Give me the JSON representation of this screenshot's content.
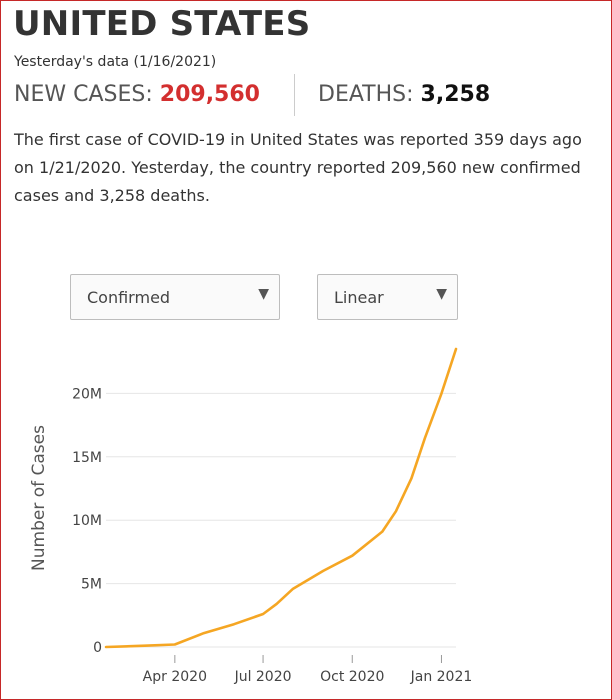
{
  "header": {
    "title": "UNITED STATES",
    "date_label": "Yesterday's data (1/16/2021)"
  },
  "stats": {
    "cases_label": "NEW CASES:",
    "cases_value": "209,560",
    "deaths_label": "DEATHS:",
    "deaths_value": "3,258"
  },
  "summary": {
    "line1_a": "The first case of ",
    "line1_b": "COVID-19",
    "line1_c": " in United States was reported 359 days ago",
    "line2": "on 1/21/2020. Yesterday, the country reported 209,560 new confirmed",
    "line3": "cases and 3,258 deaths."
  },
  "controls": {
    "metric_select": "Confirmed",
    "scale_select": "Linear"
  },
  "colors": {
    "line": "#f5a623",
    "title": "#333333",
    "cases_value": "#d32f2f",
    "frame": "#c62828",
    "grid": "#e6e6e6"
  },
  "chart_data": {
    "type": "line",
    "title": "",
    "xlabel": "",
    "ylabel": "Number of Cases",
    "x_ticks": [
      "Apr 2020",
      "Jul 2020",
      "Oct 2020",
      "Jan 2021"
    ],
    "y_ticks": [
      "0",
      "5M",
      "10M",
      "15M",
      "20M"
    ],
    "ylim": [
      0,
      23500000
    ],
    "grid": true,
    "series": [
      {
        "dates": [
          "2020-01-21",
          "2020-03-01",
          "2020-04-01",
          "2020-05-01",
          "2020-06-01",
          "2020-07-01",
          "2020-07-15",
          "2020-08-01",
          "2020-09-01",
          "2020-10-01",
          "2020-11-01",
          "2020-11-15",
          "2020-12-01",
          "2020-12-15",
          "2021-01-01",
          "2021-01-16"
        ],
        "values": [
          0,
          100000,
          200000,
          1100000,
          1800000,
          2600000,
          3400000,
          4600000,
          6000000,
          7200000,
          9100000,
          10700000,
          13300000,
          16500000,
          20000000,
          23500000
        ]
      }
    ]
  }
}
